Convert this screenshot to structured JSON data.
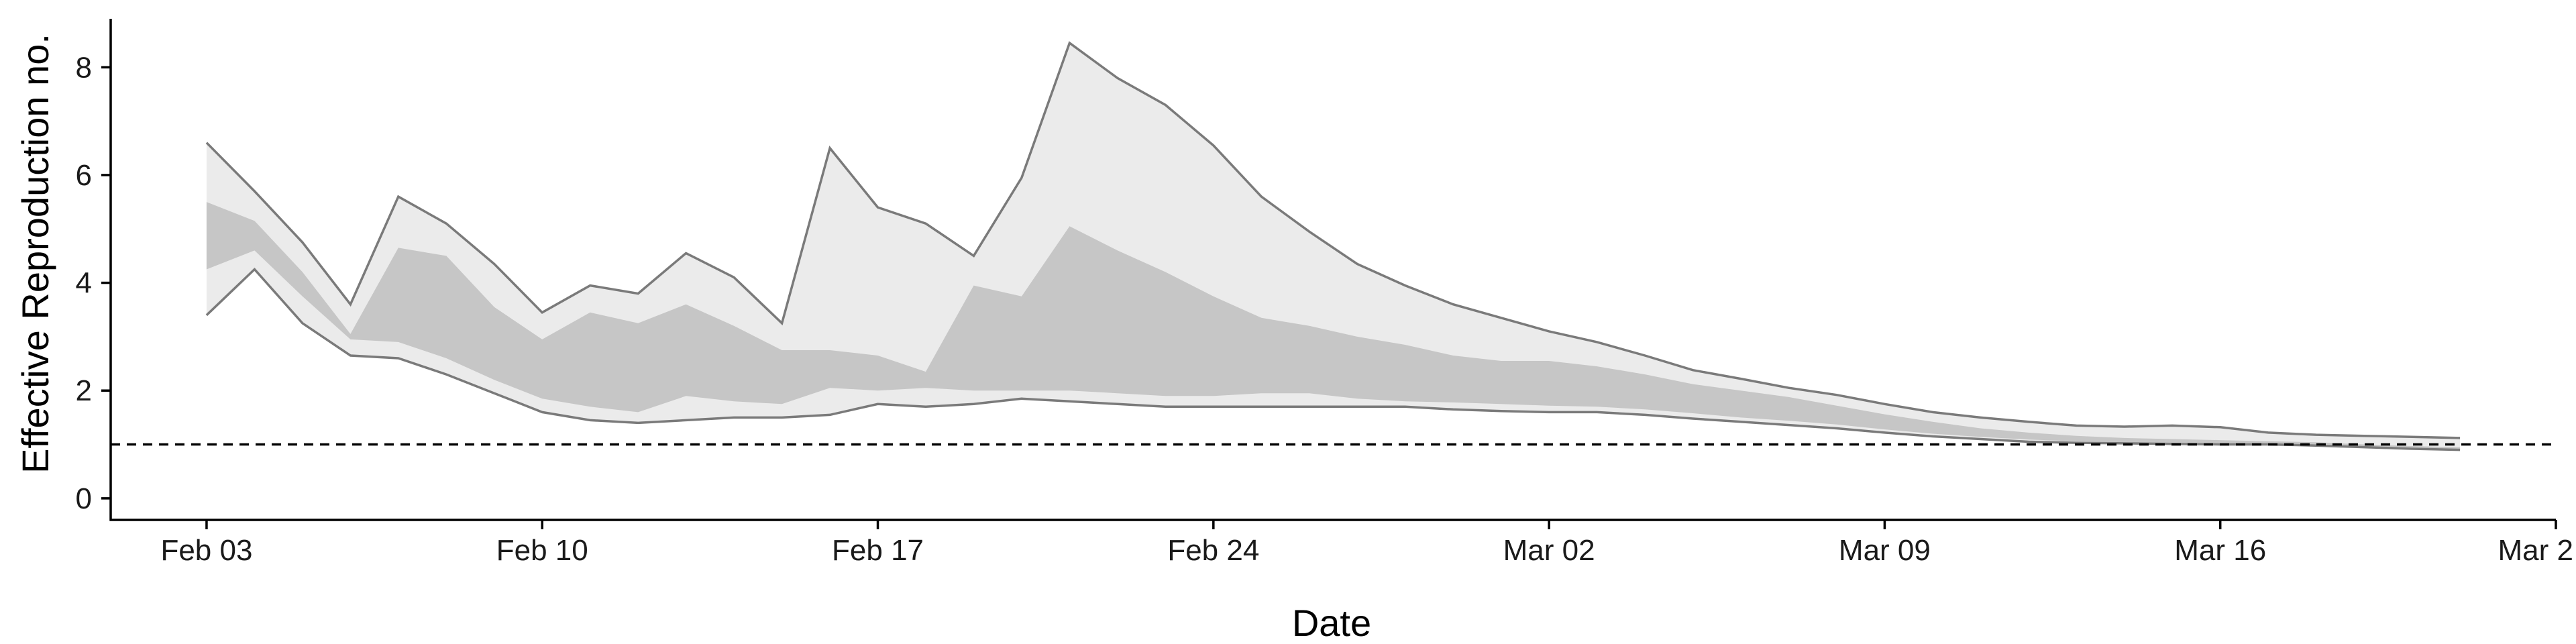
{
  "chart_data": {
    "type": "area",
    "title": "",
    "xlabel": "Date",
    "ylabel": "Effective Reproduction no.",
    "x_ticks": [
      "Feb 03",
      "Feb 10",
      "Feb 17",
      "Feb 24",
      "Mar 02",
      "Mar 09",
      "Mar 16",
      "Mar 2"
    ],
    "y_ticks": [
      "0",
      "2",
      "4",
      "6",
      "8"
    ],
    "ylim": [
      -0.4,
      8.9
    ],
    "xlim": [
      "2020-02-01",
      "2020-03-23"
    ],
    "grid": false,
    "reference_line": {
      "y": 1,
      "style": "dashed"
    },
    "x": [
      "2020-02-03",
      "2020-02-04",
      "2020-02-05",
      "2020-02-06",
      "2020-02-07",
      "2020-02-08",
      "2020-02-09",
      "2020-02-10",
      "2020-02-11",
      "2020-02-12",
      "2020-02-13",
      "2020-02-14",
      "2020-02-15",
      "2020-02-16",
      "2020-02-17",
      "2020-02-18",
      "2020-02-19",
      "2020-02-20",
      "2020-02-21",
      "2020-02-22",
      "2020-02-23",
      "2020-02-24",
      "2020-02-25",
      "2020-02-26",
      "2020-02-27",
      "2020-02-28",
      "2020-02-29",
      "2020-03-01",
      "2020-03-02",
      "2020-03-03",
      "2020-03-04",
      "2020-03-05",
      "2020-03-06",
      "2020-03-07",
      "2020-03-08",
      "2020-03-09",
      "2020-03-10",
      "2020-03-11",
      "2020-03-12",
      "2020-03-13",
      "2020-03-14",
      "2020-03-15",
      "2020-03-16",
      "2020-03-17",
      "2020-03-18",
      "2020-03-19",
      "2020-03-20",
      "2020-03-21"
    ],
    "series": [
      {
        "values": [
          3.4,
          4.25,
          3.25,
          2.65,
          2.6,
          2.3,
          1.95,
          1.6,
          1.45,
          1.4,
          1.45,
          1.5,
          1.5,
          1.55,
          1.75,
          1.7,
          1.75,
          1.85,
          1.8,
          1.75,
          1.7,
          1.7,
          1.7,
          1.7,
          1.7,
          1.7,
          1.65,
          1.62,
          1.6,
          1.6,
          1.55,
          1.48,
          1.42,
          1.36,
          1.3,
          1.22,
          1.15,
          1.1,
          1.05,
          1.03,
          1.02,
          1.01,
          1.0,
          1.0,
          0.98,
          0.95,
          0.92,
          0.9
        ]
      },
      {
        "values": [
          4.25,
          4.6,
          3.75,
          2.95,
          2.9,
          2.6,
          2.2,
          1.85,
          1.7,
          1.6,
          1.9,
          1.8,
          1.75,
          2.05,
          2.0,
          2.05,
          2.0,
          2.0,
          2.0,
          1.95,
          1.9,
          1.9,
          1.95,
          1.95,
          1.85,
          1.8,
          1.78,
          1.75,
          1.72,
          1.7,
          1.65,
          1.58,
          1.5,
          1.44,
          1.37,
          1.28,
          1.2,
          1.14,
          1.09,
          1.06,
          1.04,
          1.03,
          1.02,
          1.01,
          0.99,
          0.96,
          0.93,
          0.91
        ]
      },
      {
        "values": [
          5.5,
          5.15,
          4.2,
          3.05,
          4.65,
          4.5,
          3.55,
          2.95,
          3.45,
          3.25,
          3.6,
          3.2,
          2.75,
          2.75,
          2.65,
          2.35,
          3.95,
          3.75,
          5.05,
          4.6,
          4.2,
          3.75,
          3.35,
          3.2,
          3.0,
          2.85,
          2.65,
          2.55,
          2.55,
          2.45,
          2.3,
          2.12,
          2.0,
          1.88,
          1.72,
          1.56,
          1.42,
          1.3,
          1.22,
          1.16,
          1.12,
          1.1,
          1.08,
          1.06,
          1.04,
          1.0,
          0.97,
          0.95
        ]
      },
      {
        "values": [
          6.6,
          5.7,
          4.75,
          3.6,
          5.6,
          5.1,
          4.35,
          3.45,
          3.95,
          3.8,
          4.55,
          4.1,
          3.25,
          6.5,
          5.4,
          5.1,
          4.5,
          5.95,
          8.45,
          7.8,
          7.3,
          6.55,
          5.6,
          4.95,
          4.35,
          3.95,
          3.6,
          3.35,
          3.1,
          2.9,
          2.65,
          2.38,
          2.22,
          2.05,
          1.92,
          1.75,
          1.6,
          1.5,
          1.42,
          1.35,
          1.33,
          1.35,
          1.32,
          1.22,
          1.18,
          1.16,
          1.14,
          1.12
        ]
      }
    ],
    "colors": {
      "outer_band": "#ebebeb",
      "inner_band": "#c6c6c6",
      "outer_line": "#7a7a7a",
      "reference": "#000000",
      "axis": "#000000"
    }
  }
}
